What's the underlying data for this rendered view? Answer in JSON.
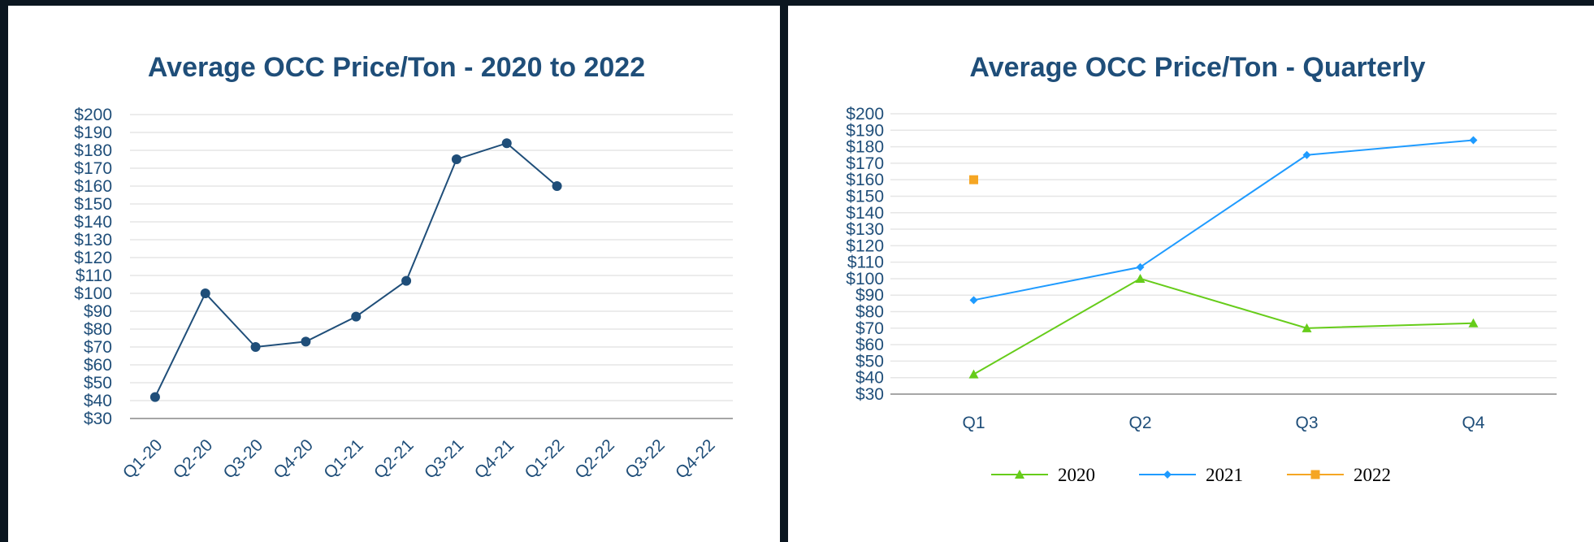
{
  "chart_data": [
    {
      "type": "line",
      "title": "Average OCC Price/Ton - 2020 to 2022",
      "xlabel": "",
      "ylabel": "",
      "categories": [
        "Q1-20",
        "Q2-20",
        "Q3-20",
        "Q4-20",
        "Q1-21",
        "Q2-21",
        "Q3-21",
        "Q4-21",
        "Q1-22",
        "Q2-22",
        "Q3-22",
        "Q4-22"
      ],
      "series": [
        {
          "values": [
            42,
            100,
            70,
            73,
            87,
            107,
            175,
            184,
            160,
            null,
            null,
            null
          ],
          "color": "#1f4e79"
        }
      ],
      "ylim": [
        30,
        200
      ],
      "yticks": [
        "$30",
        "$40",
        "$50",
        "$60",
        "$70",
        "$80",
        "$90",
        "$100",
        "$110",
        "$120",
        "$130",
        "$140",
        "$150",
        "$160",
        "$170",
        "$180",
        "$190",
        "$200"
      ],
      "grid": true
    },
    {
      "type": "line",
      "title": "Average OCC Price/Ton - Quarterly",
      "xlabel": "",
      "ylabel": "",
      "categories": [
        "Q1",
        "Q2",
        "Q3",
        "Q4"
      ],
      "series": [
        {
          "name": "2020",
          "values": [
            42,
            100,
            70,
            73
          ],
          "color": "#66cc1a",
          "marker": "triangle"
        },
        {
          "name": "2021",
          "values": [
            87,
            107,
            175,
            184
          ],
          "color": "#1f9bff",
          "marker": "diamond"
        },
        {
          "name": "2022",
          "values": [
            160,
            null,
            null,
            null
          ],
          "color": "#f5a623",
          "marker": "square"
        }
      ],
      "ylim": [
        30,
        200
      ],
      "yticks": [
        "$30",
        "$40",
        "$50",
        "$60",
        "$70",
        "$80",
        "$90",
        "$100",
        "$110",
        "$120",
        "$130",
        "$140",
        "$150",
        "$160",
        "$170",
        "$180",
        "$190",
        "$200"
      ],
      "grid": true,
      "legend_position": "bottom"
    }
  ]
}
